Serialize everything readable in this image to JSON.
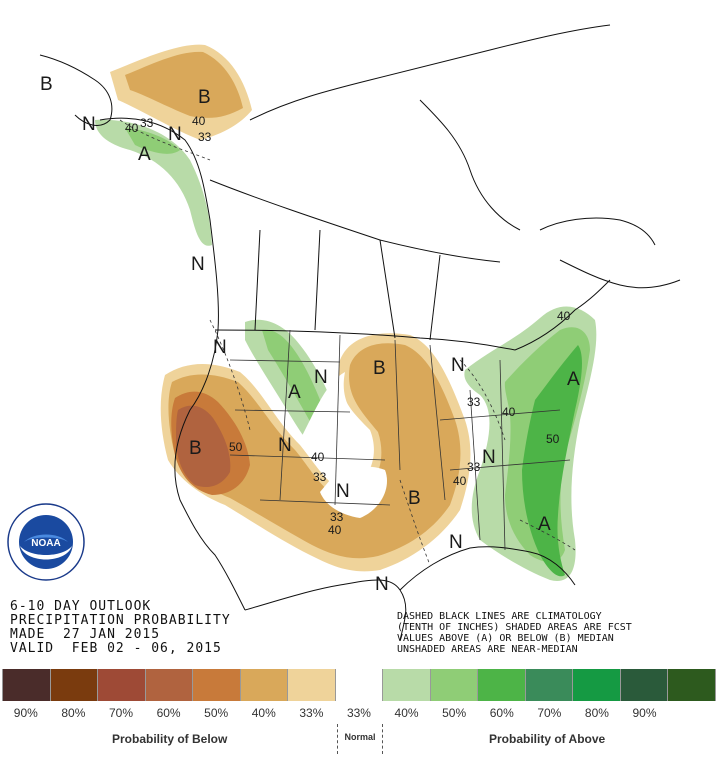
{
  "title": {
    "line1": "6-10 DAY OUTLOOK",
    "line2": "PRECIPITATION PROBABILITY",
    "line3": "MADE  27 JAN 2015",
    "line4": "VALID  FEB 02 - 06, 2015"
  },
  "note": {
    "line1": "DASHED BLACK LINES ARE CLIMATOLOGY",
    "line2": "(TENTH OF INCHES) SHADED AREAS ARE FCST",
    "line3": "VALUES ABOVE (A) OR BELOW (B) MEDIAN",
    "line4": "UNSHADED AREAS ARE NEAR-MEDIAN"
  },
  "logo": {
    "text": "NOAA",
    "ring_text": "NATIONAL OCEANIC AND ATMOSPHERIC ADMINISTRATION",
    "ring_text_bottom": "U.S. DEPARTMENT OF COMMERCE"
  },
  "map_labels": {
    "b_alaska_west": "B",
    "b_alaska_north": "B",
    "n_alaska": "N",
    "a_alaska": "A",
    "n_alaska_2": "N",
    "n_bc": "N",
    "n_pacnw": "N",
    "a_rockies": "A",
    "n_dakota": "N",
    "b_minnesota": "B",
    "b_california": "B",
    "n_great_basin": "N",
    "n_southern_plains": "N",
    "b_arkansas": "B",
    "n_great_lakes": "N",
    "n_ohio": "N",
    "a_northeast": "A",
    "a_southeast": "A",
    "n_texas_coast": "N",
    "n_gulf": "N"
  },
  "contour_labels": {
    "c40_ak": "40",
    "c33_ak": "33",
    "c33_ak2": "33",
    "c40_ak_west": "40",
    "c50_ca": "50",
    "c40_co": "40",
    "c33_co": "33",
    "c33_tx": "33",
    "c40_tx": "40",
    "c40_ar": "40",
    "c33_ar": "33",
    "c33_mi": "33",
    "c40_oh": "40",
    "c50_va": "50",
    "c40_ne": "40"
  },
  "legend": {
    "below_caption": "Probability of Below",
    "above_caption": "Probability of Above",
    "normal_caption": "Normal",
    "swatches": [
      {
        "color": "#4a2c2a",
        "label": "90%"
      },
      {
        "color": "#7a3b0e",
        "label": "80%"
      },
      {
        "color": "#9e4a36",
        "label": "70%"
      },
      {
        "color": "#b0633f",
        "label": "60%"
      },
      {
        "color": "#c87a3a",
        "label": "50%"
      },
      {
        "color": "#d9a85a",
        "label": "40%"
      },
      {
        "color": "#efd39a",
        "label": "33%"
      },
      {
        "color": "#ffffff",
        "label": "33%"
      },
      {
        "color": "#b8dba8",
        "label": "40%"
      },
      {
        "color": "#8fcd76",
        "label": "50%"
      },
      {
        "color": "#4db447",
        "label": "60%"
      },
      {
        "color": "#3a8b5a",
        "label": "70%"
      },
      {
        "color": "#159a43",
        "label": "80%"
      },
      {
        "color": "#2a5a3a",
        "label": "90%"
      },
      {
        "color": "#2d5a1e",
        "label": ""
      }
    ]
  }
}
